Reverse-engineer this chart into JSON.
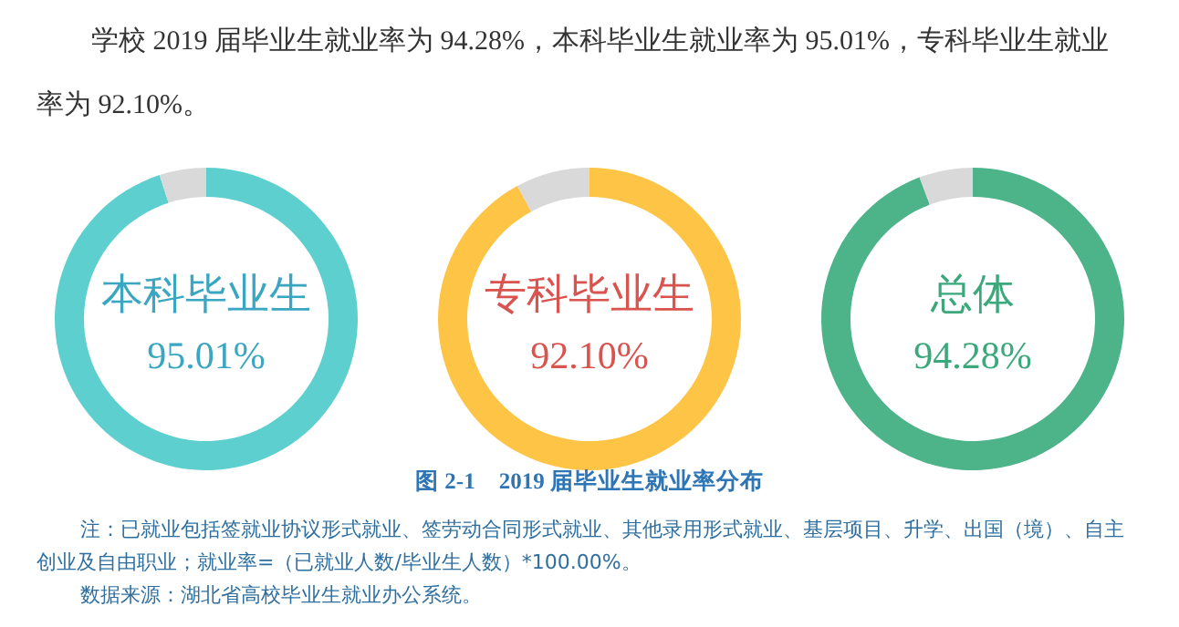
{
  "chart_data": [
    {
      "type": "other",
      "annotations": [
        "学校 2019 届毕业生就业率为 94.28%，本科毕业生就业率为 95.01%，专科毕业生就业率为 92.10%。"
      ]
    },
    {
      "type": "donut",
      "title": "本科毕业生",
      "categories": [
        null,
        null
      ],
      "values": [
        95.01,
        4.99
      ],
      "colors": [
        "#5ecfcf",
        "#d9d9d9"
      ],
      "value_labels": [
        "95.01%",
        null
      ]
    },
    {
      "type": "donut",
      "title": "专科毕业生",
      "categories": [
        null,
        null
      ],
      "values": [
        92.1,
        7.9
      ],
      "colors": [
        "#fec445",
        "#d9d9d9"
      ],
      "value_labels": [
        "92.10%",
        null
      ]
    },
    {
      "type": "donut",
      "title": "总体",
      "categories": [
        null,
        null
      ],
      "values": [
        94.28,
        5.72
      ],
      "colors": [
        "#4db388",
        "#d9d9d9"
      ],
      "value_labels": [
        "94.28%",
        null
      ]
    },
    {
      "type": "other",
      "title": "图 2-1　2019 届毕业生就业率分布",
      "annotations": [
        "注：已就业包括签就业协议形式就业、签劳动合同形式就业、其他录用形式就业、基层项目、升学、出国（境）、自主创业及自由职业；就业率=（已就业人数/毕业生人数）*100.00%。",
        "数据来源：湖北省高校毕业生就业办公系统。"
      ]
    }
  ]
}
